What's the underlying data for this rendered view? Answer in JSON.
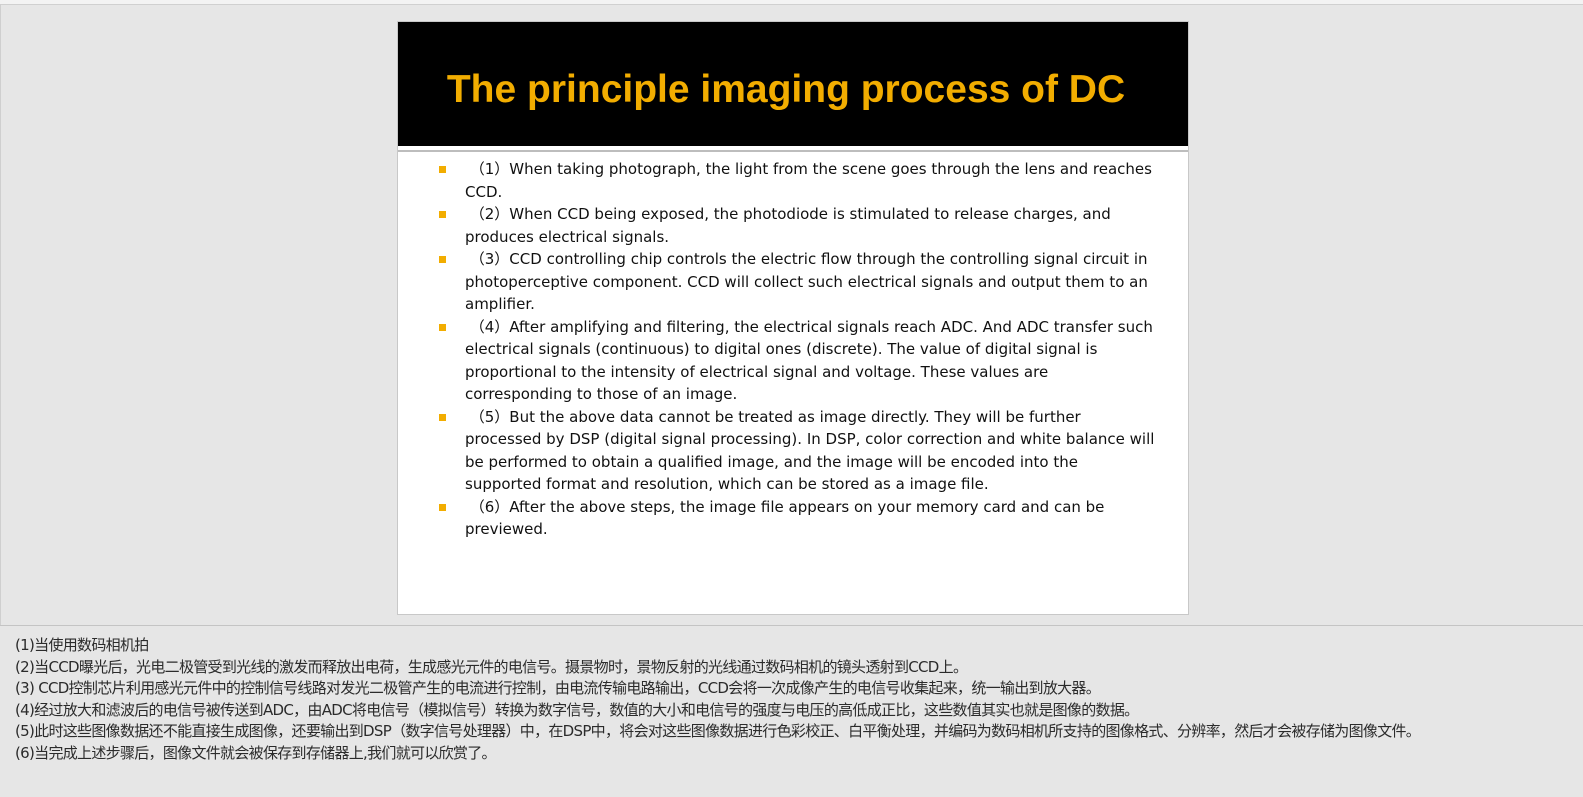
{
  "slide": {
    "title": "The principle imaging process of DC",
    "accent_color": "#f2ad00",
    "header_background": "#000000",
    "bullets": [
      " （1）When taking photograph, the light from the scene goes through the lens and reaches CCD.",
      " （2）When CCD being exposed, the photodiode is stimulated to release charges, and produces electrical signals.",
      " （3）CCD controlling chip controls the electric flow through the controlling signal circuit in photoperceptive component. CCD will collect such electrical signals and output them to an amplifier.",
      " （4）After amplifying and filtering, the electrical signals reach ADC. And ADC transfer such electrical signals (continuous) to digital ones (discrete). The value of digital signal is proportional to the intensity of electrical signal and voltage. These values are corresponding to those of an image.",
      " （5）But the above data cannot be treated as image directly. They will be further processed by DSP (digital signal processing). In DSP, color correction and white balance will be performed to obtain a qualified image, and the image will be encoded into the supported format and resolution, which can be stored as a image file.",
      " （6）After the above steps, the image file appears on your memory card and can be previewed."
    ]
  },
  "notes": {
    "lines": [
      "(1)当使用数码相机拍",
      "(2)当CCD曝光后，光电二极管受到光线的激发而释放出电荷，生成感光元件的电信号。摄景物时，景物反射的光线通过数码相机的镜头透射到CCD上。",
      "(3) CCD控制芯片利用感光元件中的控制信号线路对发光二极管产生的电流进行控制，由电流传输电路输出，CCD会将一次成像产生的电信号收集起来，统一输出到放大器。",
      "(4)经过放大和滤波后的电信号被传送到ADC，由ADC将电信号（模拟信号）转换为数字信号，数值的大小和电信号的强度与电压的高低成正比，这些数值其实也就是图像的数据。",
      "(5)此时这些图像数据还不能直接生成图像，还要输出到DSP（数字信号处理器）中，在DSP中，将会对这些图像数据进行色彩校正、白平衡处理，并编码为数码相机所支持的图像格式、分辨率，然后才会被存储为图像文件。",
      "(6)当完成上述步骤后，图像文件就会被保存到存储器上,我们就可以欣赏了。"
    ]
  }
}
